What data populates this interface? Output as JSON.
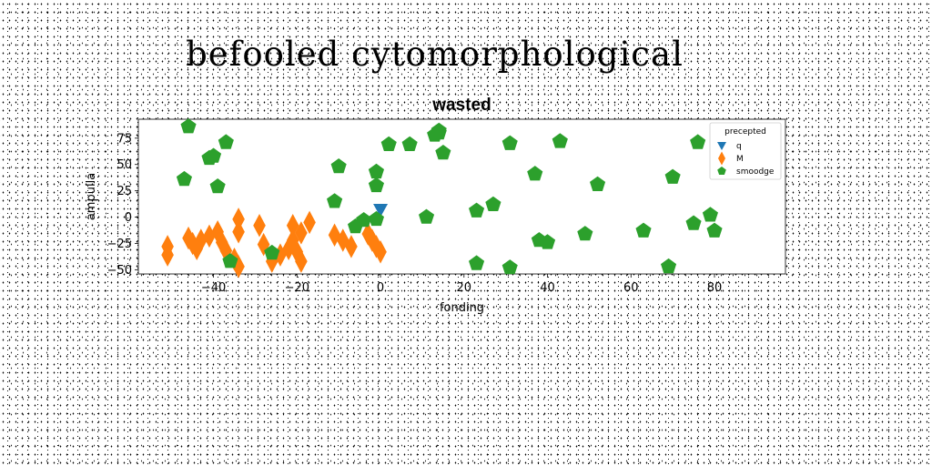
{
  "suptitle": "befooled cytomorphological",
  "chart_data": {
    "type": "scatter",
    "title": "wasted",
    "xlabel": "fonding",
    "ylabel": "ampulla",
    "xlim": [
      -58,
      97
    ],
    "ylim": [
      -54,
      93
    ],
    "xticks": [
      -40,
      -20,
      0,
      20,
      40,
      60,
      80
    ],
    "yticks": [
      -50,
      -25,
      0,
      25,
      50,
      75
    ],
    "xtick_labels": [
      "−40",
      "−20",
      "0",
      "20",
      "40",
      "60",
      "80"
    ],
    "ytick_labels": [
      "−50",
      "−25",
      "0",
      "25",
      "50",
      "75"
    ],
    "grid": false,
    "legend": {
      "title": "precepted",
      "placement": "top-right"
    },
    "series": [
      {
        "name": "q",
        "marker": "triangle-down",
        "color": "#1f77b4",
        "points": [
          [
            0,
            7
          ]
        ]
      },
      {
        "name": "M",
        "marker": "diamond",
        "color": "#ff7f0e",
        "points": [
          [
            -51,
            -36
          ],
          [
            -51,
            -28
          ],
          [
            -46,
            -20
          ],
          [
            -45,
            -25
          ],
          [
            -44,
            -30
          ],
          [
            -43,
            -22
          ],
          [
            -41,
            -18
          ],
          [
            -39,
            -14
          ],
          [
            -38,
            -24
          ],
          [
            -37,
            -32
          ],
          [
            -35,
            -40
          ],
          [
            -34,
            -2
          ],
          [
            -34,
            -14
          ],
          [
            -34,
            -47
          ],
          [
            -29,
            -8
          ],
          [
            -28,
            -26
          ],
          [
            -26,
            -42
          ],
          [
            -24,
            -36
          ],
          [
            -22,
            -30
          ],
          [
            -21,
            -8
          ],
          [
            -21,
            -22
          ],
          [
            -20,
            -33
          ],
          [
            -19,
            -42
          ],
          [
            -19,
            -15
          ],
          [
            -17,
            -5
          ],
          [
            -11,
            -17
          ],
          [
            -9,
            -22
          ],
          [
            -7,
            -28
          ],
          [
            -3,
            -16
          ],
          [
            -2,
            -22
          ],
          [
            -1,
            -28
          ],
          [
            0,
            -33
          ]
        ]
      },
      {
        "name": "smoodge",
        "marker": "pentagon",
        "color": "#2ca02c",
        "points": [
          [
            -46,
            86
          ],
          [
            -47,
            36
          ],
          [
            -41,
            56
          ],
          [
            -40,
            58
          ],
          [
            -37,
            71
          ],
          [
            -39,
            29
          ],
          [
            -36,
            -42
          ],
          [
            -26,
            -34
          ],
          [
            -11,
            15
          ],
          [
            -10,
            48
          ],
          [
            -6,
            -9
          ],
          [
            -4,
            -3
          ],
          [
            -1,
            43
          ],
          [
            -1,
            30
          ],
          [
            -1,
            -2
          ],
          [
            2,
            69
          ],
          [
            7,
            69
          ],
          [
            11,
            0
          ],
          [
            13,
            78
          ],
          [
            14,
            82
          ],
          [
            14,
            80
          ],
          [
            15,
            61
          ],
          [
            23,
            6
          ],
          [
            23,
            -44
          ],
          [
            27,
            12
          ],
          [
            31,
            70
          ],
          [
            31,
            -48
          ],
          [
            37,
            41
          ],
          [
            38,
            -22
          ],
          [
            40,
            -24
          ],
          [
            43,
            72
          ],
          [
            49,
            -16
          ],
          [
            52,
            31
          ],
          [
            63,
            -13
          ],
          [
            69,
            -47
          ],
          [
            70,
            38
          ],
          [
            75,
            -6
          ],
          [
            76,
            71
          ],
          [
            79,
            2
          ],
          [
            80,
            -13
          ]
        ]
      }
    ]
  }
}
